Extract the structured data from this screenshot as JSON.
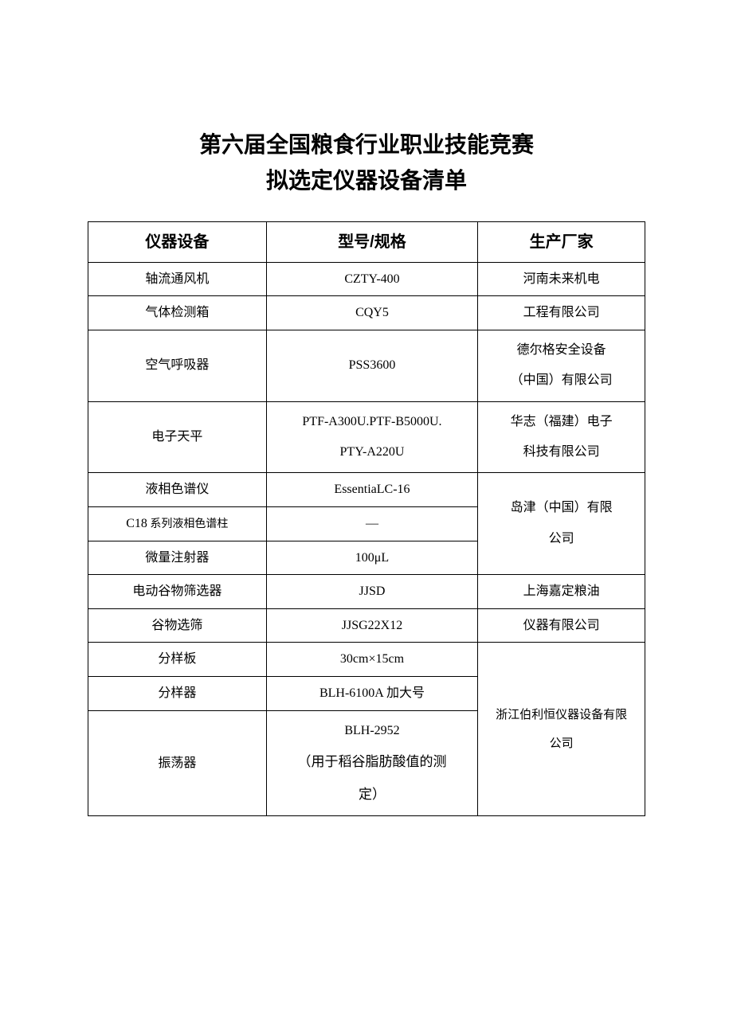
{
  "title_line1": "第六届全国粮食行业职业技能竞赛",
  "title_line2": "拟选定仪器设备清单",
  "headers": {
    "equipment": "仪器设备",
    "model": "型号/规格",
    "manufacturer": "生产厂家"
  },
  "rows": {
    "r1": {
      "equip": "轴流通风机",
      "model": "CZTY-400"
    },
    "r2": {
      "equip": "气体检测箱",
      "model": "CQY5"
    },
    "mfr1": "河南未来机电",
    "mfr1b": "工程有限公司",
    "r3": {
      "equip": "空气呼吸器",
      "model": "PSS3600"
    },
    "mfr2a": "德尔格安全设备",
    "mfr2b": "（中国）有限公司",
    "r4": {
      "equip": "电子天平",
      "model_a": "PTF-A300U.PTF-B5000U.",
      "model_b": "PTY-A220U"
    },
    "mfr3a": "华志（福建）电子",
    "mfr3b": "科技有限公司",
    "r5": {
      "equip": "液相色谱仪",
      "model": "EssentiaLC-16"
    },
    "r6": {
      "equip_a": "C18",
      "equip_b": " 系列液相色谱柱",
      "model": "—"
    },
    "r7": {
      "equip": "微量注射器",
      "model": "100μL"
    },
    "mfr4a": "岛津（中国）有限",
    "mfr4b": "公司",
    "r8": {
      "equip": "电动谷物筛选器",
      "model": "JJSD"
    },
    "r9": {
      "equip": "谷物选筛",
      "model": "JJSG22X12"
    },
    "mfr5a": "上海嘉定粮油",
    "mfr5b": "仪器有限公司",
    "r10": {
      "equip": "分样板",
      "model": "30cm×15cm"
    },
    "r11": {
      "equip": "分样器",
      "model": "BLH-6100A 加大号"
    },
    "r12": {
      "equip": "振荡器",
      "model_a": "BLH-2952",
      "model_b": "（用于稻谷脂肪酸值的测",
      "model_c": "定）"
    },
    "mfr6a": "浙江伯利恒仪器设备有限",
    "mfr6b": "公司"
  }
}
